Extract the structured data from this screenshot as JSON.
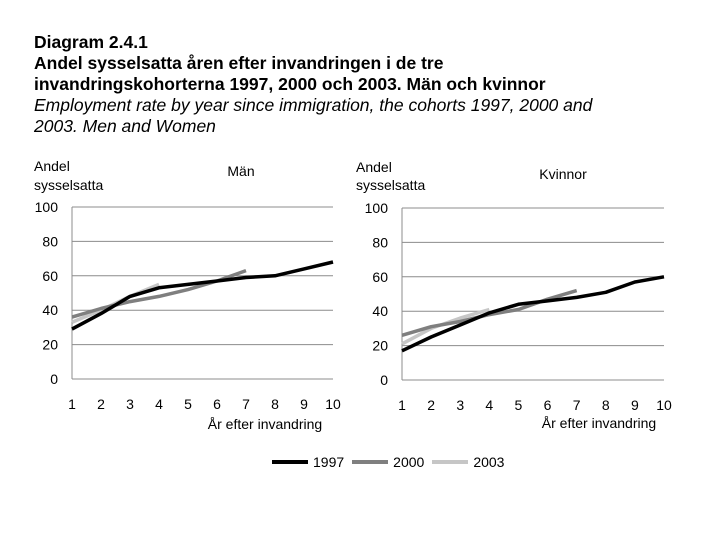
{
  "header": {
    "number": "Diagram 2.4.1",
    "title_sv_line1": "Andel sysselsatta åren efter invandringen i de tre",
    "title_sv_line2": "invandringskohorterna 1997, 2000 och 2003. Män och kvinnor",
    "title_en_line1": "Employment rate by year since immigration, the cohorts 1997, 2000 and",
    "title_en_line2": "2003. Men and Women"
  },
  "colors": {
    "1997": "#000000",
    "2000": "#7f7f7f",
    "2003": "#c6c6c6"
  },
  "chart_data": [
    {
      "type": "line",
      "title": "Män",
      "ylabel_line1": "Andel",
      "ylabel_line2": "sysselsatta",
      "xlabel": "År efter invandring",
      "ylim": [
        0,
        100
      ],
      "yticks": [
        0,
        20,
        40,
        60,
        80,
        100
      ],
      "xticks": [
        1,
        2,
        3,
        4,
        5,
        6,
        7,
        8,
        9,
        10
      ],
      "series": [
        {
          "name": "1997",
          "x": [
            1,
            2,
            3,
            4,
            5,
            6,
            7,
            8,
            9,
            10
          ],
          "values": [
            29,
            38,
            48,
            53,
            55,
            57,
            59,
            60,
            64,
            68
          ]
        },
        {
          "name": "2000",
          "x": [
            1,
            2,
            3,
            4,
            5,
            6,
            7
          ],
          "values": [
            36,
            41,
            45,
            48,
            52,
            57,
            63
          ]
        },
        {
          "name": "2003",
          "x": [
            1,
            2,
            3,
            4
          ],
          "values": [
            33,
            40,
            48,
            55
          ]
        }
      ]
    },
    {
      "type": "line",
      "title": "Kvinnor",
      "ylabel_line1": "Andel",
      "ylabel_line2": "sysselsatta",
      "xlabel": "År efter invandring",
      "ylim": [
        0,
        100
      ],
      "yticks": [
        0,
        20,
        40,
        60,
        80,
        100
      ],
      "xticks": [
        1,
        2,
        3,
        4,
        5,
        6,
        7,
        8,
        9,
        10
      ],
      "series": [
        {
          "name": "1997",
          "x": [
            1,
            2,
            3,
            4,
            5,
            6,
            7,
            8,
            9,
            10
          ],
          "values": [
            17,
            25,
            32,
            39,
            44,
            46,
            48,
            51,
            57,
            60
          ]
        },
        {
          "name": "2000",
          "x": [
            1,
            2,
            3,
            4,
            5,
            6,
            7
          ],
          "values": [
            26,
            31,
            34,
            38,
            41,
            47,
            52
          ]
        },
        {
          "name": "2003",
          "x": [
            1,
            2,
            3,
            4
          ],
          "values": [
            21,
            30,
            36,
            41
          ]
        }
      ]
    }
  ],
  "legend": {
    "items": [
      "1997",
      "2000",
      "2003"
    ],
    "placement": "bottom"
  }
}
